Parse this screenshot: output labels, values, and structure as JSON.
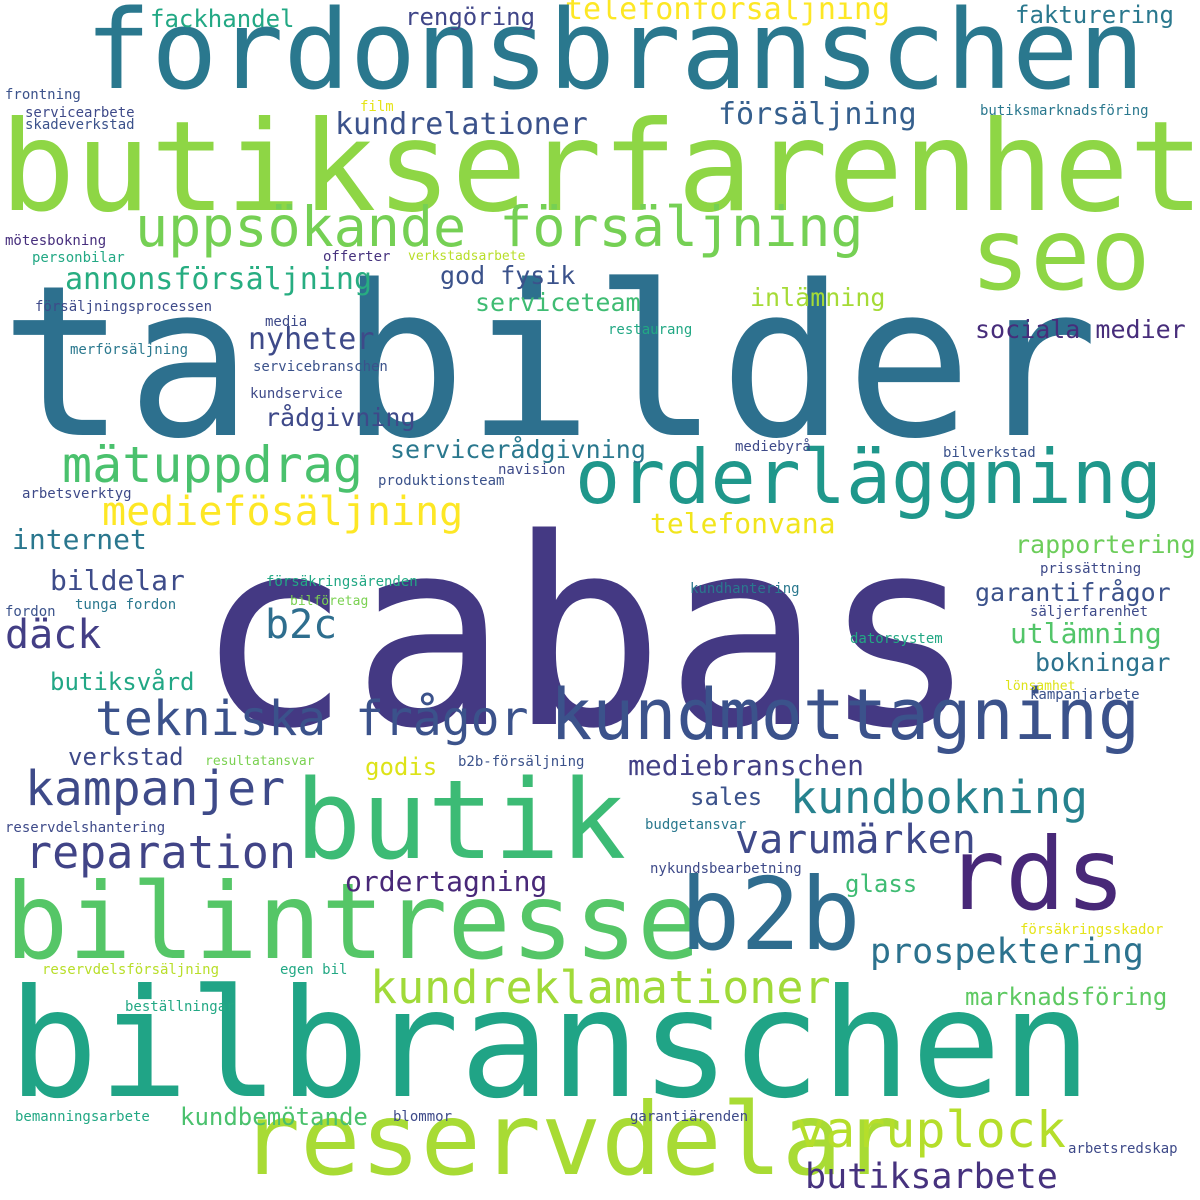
{
  "words": [
    {
      "text": "cabas",
      "color": "#443983"
    },
    {
      "text": "ta",
      "color": "#2d708e"
    },
    {
      "text": "bilder",
      "color": "#2d708e"
    },
    {
      "text": "bilbranschen",
      "color": "#20a486"
    },
    {
      "text": "butikserfarenhet",
      "color": "#8ed645"
    },
    {
      "text": "fordonsbranschen",
      "color": "#2a788e"
    },
    {
      "text": "butik",
      "color": "#3cbb75"
    },
    {
      "text": "bilintresse",
      "color": "#55c667"
    },
    {
      "text": "reservdelar",
      "color": "#a8db34"
    },
    {
      "text": "seo",
      "color": "#8ed645"
    },
    {
      "text": "b2b",
      "color": "#2f6c8e"
    },
    {
      "text": "rds",
      "color": "#482878"
    },
    {
      "text": "orderläggning",
      "color": "#1f978b"
    },
    {
      "text": "kundmottagning",
      "color": "#3b528b"
    },
    {
      "text": "uppsökande försäljning",
      "color": "#75d054"
    },
    {
      "text": "mätuppdrag",
      "color": "#4ac16d"
    },
    {
      "text": "tekniska frågor",
      "color": "#3b528b"
    },
    {
      "text": "kampanjer",
      "color": "#3e4a89"
    },
    {
      "text": "kundbokning",
      "color": "#26828e"
    },
    {
      "text": "reparation",
      "color": "#414487"
    },
    {
      "text": "varuplock",
      "color": "#b5de2b"
    },
    {
      "text": "kundreklamationer",
      "color": "#a0da39"
    },
    {
      "text": "mediefösäljning",
      "color": "#fde725"
    },
    {
      "text": "varumärken",
      "color": "#3e4989"
    },
    {
      "text": "prospektering",
      "color": "#2c728e"
    },
    {
      "text": "butiksarbete",
      "color": "#46327e"
    },
    {
      "text": "däck",
      "color": "#433e85"
    },
    {
      "text": "b2c",
      "color": "#2e6e8e"
    },
    {
      "text": "kundrelationer",
      "color": "#3b528b"
    },
    {
      "text": "försäljning",
      "color": "#355f8d"
    },
    {
      "text": "annonsförsäljning",
      "color": "#27ad81"
    },
    {
      "text": "nyheter",
      "color": "#3e4a89"
    },
    {
      "text": "internet",
      "color": "#2a778e"
    },
    {
      "text": "bildelar",
      "color": "#3e4c8a"
    },
    {
      "text": "telefonförsäljning",
      "color": "#fde725"
    },
    {
      "text": "telefonvana",
      "color": "#f1e51d"
    },
    {
      "text": "mediebranschen",
      "color": "#424086"
    },
    {
      "text": "ordertagning",
      "color": "#482878"
    },
    {
      "text": "utlämning",
      "color": "#52c569"
    },
    {
      "text": "bokningar",
      "color": "#2c728e"
    },
    {
      "text": "serviceteam",
      "color": "#3fbc73"
    },
    {
      "text": "rådgivning",
      "color": "#3e4989"
    },
    {
      "text": "servicerådgivning",
      "color": "#2a788e"
    },
    {
      "text": "garantifrågor",
      "color": "#3b528b"
    },
    {
      "text": "rapportering",
      "color": "#6ccd5a"
    },
    {
      "text": "sociala medier",
      "color": "#472d7b"
    },
    {
      "text": "inlämning",
      "color": "#a5db36"
    },
    {
      "text": "god fysik",
      "color": "#3b528b"
    },
    {
      "text": "marknadsföring",
      "color": "#5ec962"
    },
    {
      "text": "verkstad",
      "color": "#3e4a89"
    },
    {
      "text": "godis",
      "color": "#dde318"
    },
    {
      "text": "sales",
      "color": "#3b528b"
    },
    {
      "text": "glass",
      "color": "#3fbc73"
    },
    {
      "text": "butiksvård",
      "color": "#22a785"
    },
    {
      "text": "kundbemötande",
      "color": "#4ac16d"
    },
    {
      "text": "fackhandel",
      "color": "#22a884"
    },
    {
      "text": "rengöring",
      "color": "#404688"
    },
    {
      "text": "fakturering",
      "color": "#2a788e"
    },
    {
      "text": "frontning",
      "color": "#3b528b"
    },
    {
      "text": "servicearbete",
      "color": "#3e4a89"
    },
    {
      "text": "skadeverkstad",
      "color": "#3b528b"
    },
    {
      "text": "film",
      "color": "#e5e419"
    },
    {
      "text": "butiksmarknadsföring",
      "color": "#2a788e"
    },
    {
      "text": "mötesbokning",
      "color": "#472f7d"
    },
    {
      "text": "personbilar",
      "color": "#22a884"
    },
    {
      "text": "offerter",
      "color": "#46327e"
    },
    {
      "text": "verkstadsarbete",
      "color": "#b8de29"
    },
    {
      "text": "försäljningsprocessen",
      "color": "#3e4a89"
    },
    {
      "text": "media",
      "color": "#3e4a89"
    },
    {
      "text": "restaurang",
      "color": "#22a884"
    },
    {
      "text": "merförsäljning",
      "color": "#2a788e"
    },
    {
      "text": "servicebranschen",
      "color": "#3b528b"
    },
    {
      "text": "kundservice",
      "color": "#3e4a89"
    },
    {
      "text": "mediebyrå",
      "color": "#3e4a89"
    },
    {
      "text": "bilverkstad",
      "color": "#3b528b"
    },
    {
      "text": "navision",
      "color": "#3e4a89"
    },
    {
      "text": "produktionsteam",
      "color": "#3b528b"
    },
    {
      "text": "arbetsverktyg",
      "color": "#3e4a89"
    },
    {
      "text": "prissättning",
      "color": "#3e4a89"
    },
    {
      "text": "försäkringsärenden",
      "color": "#22a884"
    },
    {
      "text": "kundhantering",
      "color": "#2a788e"
    },
    {
      "text": "bilföretag",
      "color": "#7ad151"
    },
    {
      "text": "säljerfarenhet",
      "color": "#3e4a89"
    },
    {
      "text": "fordon",
      "color": "#3b528b"
    },
    {
      "text": "tunga fordon",
      "color": "#2a788e"
    },
    {
      "text": "datorsystem",
      "color": "#22a884"
    },
    {
      "text": "lönsamhet",
      "color": "#dde318"
    },
    {
      "text": "kampanjarbete",
      "color": "#3b528b"
    },
    {
      "text": "resultatansvar",
      "color": "#7ad151"
    },
    {
      "text": "b2b-försäljning",
      "color": "#3b528b"
    },
    {
      "text": "reservdelshantering",
      "color": "#3e4a89"
    },
    {
      "text": "budgetansvar",
      "color": "#2a788e"
    },
    {
      "text": "nykundsbearbetning",
      "color": "#3e4a89"
    },
    {
      "text": "försäkringsskador",
      "color": "#e5e419"
    },
    {
      "text": "reservdelsförsäljning",
      "color": "#b8de29"
    },
    {
      "text": "egen bil",
      "color": "#22a884"
    },
    {
      "text": "beställningar",
      "color": "#22a884"
    },
    {
      "text": "bemanningsarbete",
      "color": "#22a884"
    },
    {
      "text": "blommor",
      "color": "#3e4a89"
    },
    {
      "text": "garantiärenden",
      "color": "#3e4a89"
    },
    {
      "text": "arbetsredskap",
      "color": "#3e4a89"
    }
  ]
}
